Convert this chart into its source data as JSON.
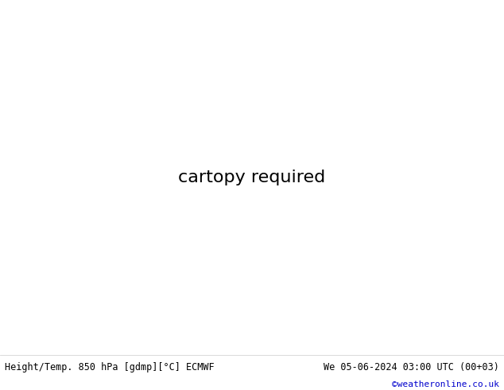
{
  "title_left": "Height/Temp. 850 hPa [gdmp][°C] ECMWF",
  "title_right": "We 05-06-2024 03:00 UTC (00+03)",
  "credit": "©weatheronline.co.uk",
  "land_color": "#c8f0a0",
  "sea_color": "#e8e8e8",
  "border_color": "#aaaaaa",
  "bottom_bar_color": "#e8e8e8",
  "text_color": "#000000",
  "credit_color": "#0000cc",
  "fig_width": 6.34,
  "fig_height": 4.9,
  "dpi": 100,
  "map_extent": [
    -25,
    50,
    27,
    72
  ],
  "contour_black": {
    "linewidth": 2.5,
    "color": "#000000"
  },
  "contour_green_lw": 1.5,
  "contour_orange_lw": 1.5,
  "contour_cyan_lw": 1.5,
  "contour_magenta_lw": 1.5
}
